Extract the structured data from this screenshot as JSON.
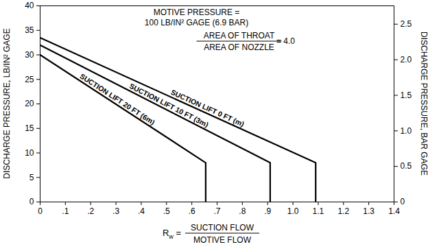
{
  "chart_data": {
    "type": "line",
    "annotation": {
      "lines": [
        "MOTIVE PRESSURE =",
        "100 LB/IN² GAGE (6.9 BAR)"
      ],
      "ratio_numerator": "AREA OF THROAT",
      "ratio_denominator": "AREA OF NOZZLE",
      "ratio_value": "= 4.0"
    },
    "xlabel": {
      "symbol": "Rw",
      "equals": "=",
      "numerator": "SUCTION FLOW",
      "denominator": "MOTIVE FLOW"
    },
    "ylabel": "DISCHARGE PRESSURE, LB/IN² GAGE",
    "y2label": "DISCHARGE PRESSURE, BAR GAGE",
    "xlim": [
      0,
      1.4
    ],
    "xticks": [
      0,
      {
        "value": 0.1,
        "label": ".1"
      },
      {
        "value": 0.2,
        "label": ".2"
      },
      {
        "value": 0.3,
        "label": ".3"
      },
      {
        "value": 0.4,
        "label": ".4"
      },
      {
        "value": 0.5,
        "label": ".5"
      },
      {
        "value": 0.6,
        "label": ".6"
      },
      {
        "value": 0.7,
        "label": ".7"
      },
      {
        "value": 0.8,
        "label": ".8"
      },
      {
        "value": 0.9,
        "label": ".9"
      },
      {
        "value": 1,
        "label": "1.0"
      },
      1.1,
      1.2,
      1.3,
      1.4
    ],
    "ylim": [
      0,
      40
    ],
    "yticks": [
      0,
      5,
      10,
      15,
      20,
      25,
      30,
      35,
      40
    ],
    "y2lim": [
      0,
      2.758
    ],
    "y2ticks": [
      0,
      0.5,
      {
        "value": 1,
        "label": "1.0"
      },
      1.5,
      {
        "value": 2,
        "label": "2.0"
      },
      2.5
    ],
    "grid": false,
    "series": [
      {
        "name": "SUCTION LIFT 0 FT (m)",
        "color": "#000000",
        "x": [
          0,
          1.09,
          1.09
        ],
        "values": [
          33.5,
          8,
          0
        ]
      },
      {
        "name": "SUCTION LIFT 10 FT (3m)",
        "color": "#000000",
        "x": [
          0,
          0.91,
          0.91
        ],
        "values": [
          32,
          8,
          0
        ]
      },
      {
        "name": "SUCTION LIFT 20 FT (6m)",
        "color": "#000000",
        "x": [
          0,
          0.655,
          0.655
        ],
        "values": [
          30,
          8,
          0
        ]
      }
    ]
  }
}
